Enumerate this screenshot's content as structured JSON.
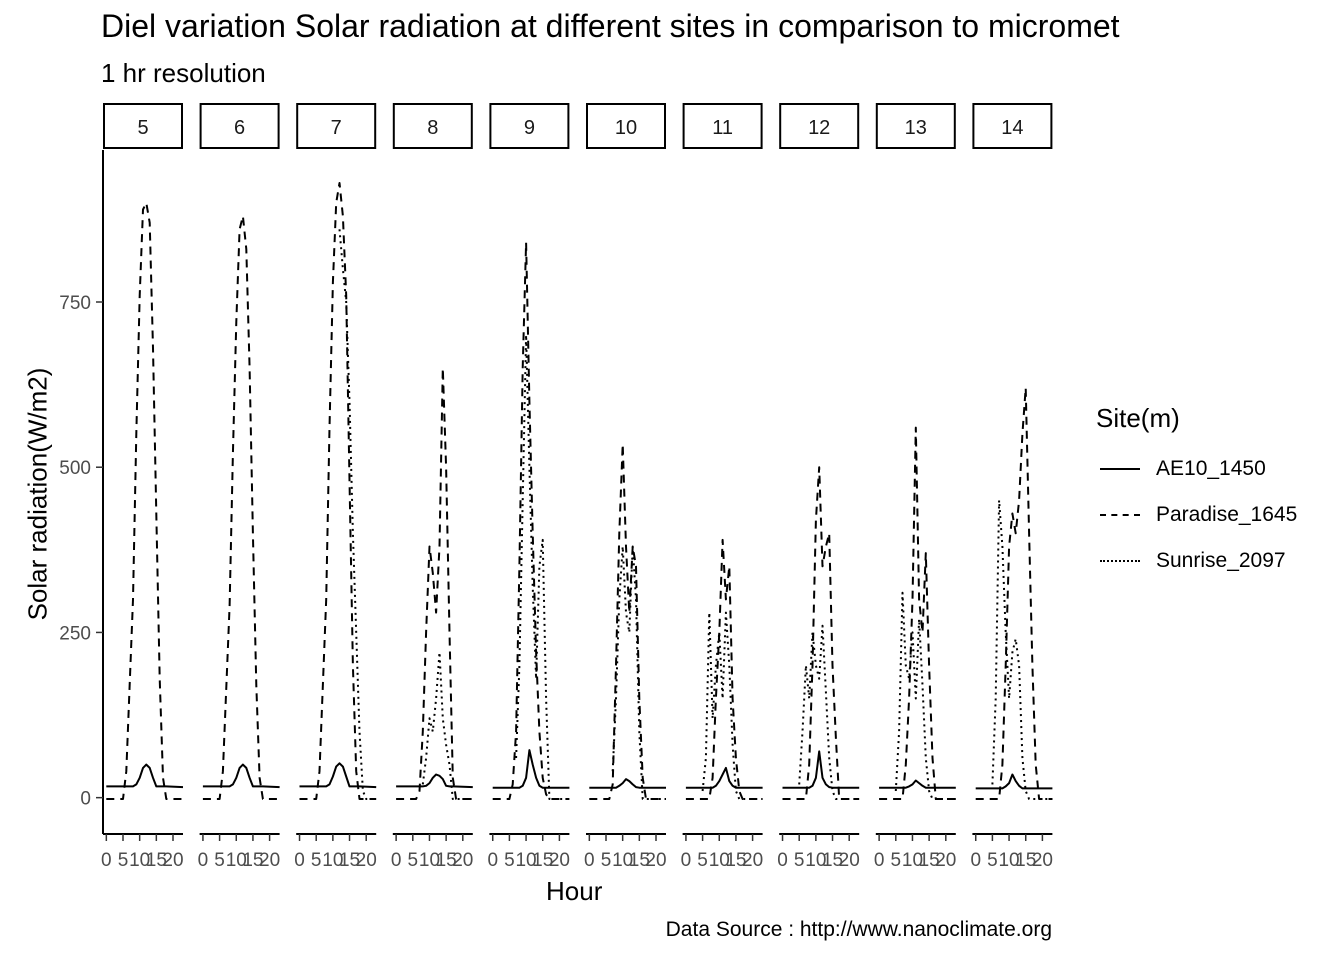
{
  "chart_data": {
    "type": "line",
    "title": "Diel variation Solar radiation at different sites in comparison to micromet",
    "subtitle": "1 hr resolution",
    "caption": "Data Source : http://www.nanoclimate.org",
    "xlabel": "Hour",
    "ylabel": "Solar radiation(W/m2)",
    "xlim": [
      -1,
      23
    ],
    "ylim": [
      -55,
      980
    ],
    "yticks": [
      0,
      250,
      500,
      750
    ],
    "xticks": [
      0,
      5,
      10,
      15,
      20
    ],
    "grid": false,
    "legend": {
      "title": "Site(m)",
      "position": "right"
    },
    "facets": [
      "5",
      "6",
      "7",
      "8",
      "9",
      "10",
      "11",
      "12",
      "13",
      "14"
    ],
    "series_styles": [
      {
        "name": "AE10_1450",
        "dash": "solid"
      },
      {
        "name": "Paradise_1645",
        "dash": "dashed"
      },
      {
        "name": "Sunrise_2097",
        "dash": "dotted"
      }
    ],
    "panels": [
      {
        "facet": "5",
        "series": [
          {
            "name": "AE10_1450",
            "x": [
              0,
              6,
              8,
              9,
              10,
              11,
              12,
              13,
              14,
              15,
              16,
              17,
              18,
              23
            ],
            "y": [
              17,
              17,
              17,
              20,
              30,
              45,
              50,
              45,
              30,
              17,
              17,
              17,
              17,
              16
            ]
          },
          {
            "name": "Paradise_1645",
            "x": [
              0,
              5,
              6,
              8,
              9,
              10,
              11,
              12,
              13,
              14,
              15,
              16,
              17,
              18,
              23
            ],
            "y": [
              -2,
              -2,
              40,
              300,
              550,
              760,
              890,
              900,
              870,
              680,
              430,
              180,
              30,
              -2,
              -2
            ]
          }
        ]
      },
      {
        "facet": "6",
        "series": [
          {
            "name": "AE10_1450",
            "x": [
              0,
              6,
              8,
              9,
              10,
              11,
              12,
              13,
              14,
              15,
              16,
              17,
              18,
              23
            ],
            "y": [
              17,
              17,
              17,
              20,
              30,
              45,
              50,
              45,
              30,
              17,
              17,
              17,
              17,
              16
            ]
          },
          {
            "name": "Paradise_1645",
            "x": [
              0,
              5,
              6,
              8,
              9,
              10,
              11,
              12,
              13,
              14,
              15,
              16,
              17,
              18,
              23
            ],
            "y": [
              -2,
              -2,
              40,
              290,
              520,
              720,
              860,
              880,
              830,
              650,
              400,
              170,
              30,
              -2,
              -2
            ]
          }
        ]
      },
      {
        "facet": "7",
        "series": [
          {
            "name": "AE10_1450",
            "x": [
              0,
              6,
              8,
              9,
              10,
              11,
              12,
              13,
              14,
              15,
              16,
              17,
              18,
              23
            ],
            "y": [
              17,
              17,
              17,
              20,
              32,
              47,
              52,
              47,
              32,
              17,
              17,
              17,
              17,
              16
            ]
          },
          {
            "name": "Paradise_1645",
            "x": [
              0,
              5,
              6,
              8,
              9,
              10,
              11,
              12,
              13,
              14,
              15,
              16,
              17,
              18,
              23
            ],
            "y": [
              -2,
              -2,
              40,
              300,
              560,
              780,
              900,
              930,
              880,
              760,
              480,
              200,
              40,
              -2,
              -2
            ]
          },
          {
            "name": "Sunrise_2097",
            "x": [
              12,
              13,
              14,
              15,
              16,
              17,
              18,
              19,
              20,
              23
            ],
            "y": [
              860,
              800,
              750,
              600,
              400,
              250,
              100,
              10,
              -2,
              -2
            ]
          }
        ]
      },
      {
        "facet": "8",
        "series": [
          {
            "name": "AE10_1450",
            "x": [
              0,
              6,
              8,
              9,
              10,
              11,
              12,
              13,
              14,
              15,
              16,
              17,
              23
            ],
            "y": [
              17,
              17,
              17,
              18,
              22,
              30,
              35,
              33,
              28,
              18,
              17,
              17,
              16
            ]
          },
          {
            "name": "Paradise_1645",
            "x": [
              0,
              6,
              7,
              8,
              9,
              10,
              11,
              12,
              13,
              14,
              15,
              16,
              17,
              18,
              23
            ],
            "y": [
              -2,
              -2,
              10,
              100,
              250,
              380,
              340,
              280,
              380,
              650,
              500,
              250,
              30,
              -2,
              -2
            ]
          },
          {
            "name": "Sunrise_2097",
            "x": [
              8,
              9,
              10,
              11,
              12,
              13,
              14,
              15,
              16,
              17,
              23
            ],
            "y": [
              20,
              60,
              120,
              100,
              150,
              220,
              120,
              80,
              50,
              -2,
              -2
            ]
          }
        ]
      },
      {
        "facet": "9",
        "series": [
          {
            "name": "AE10_1450",
            "x": [
              0,
              6,
              8,
              9,
              10,
              11,
              12,
              13,
              14,
              15,
              16,
              17,
              23
            ],
            "y": [
              15,
              15,
              15,
              18,
              30,
              72,
              50,
              30,
              18,
              15,
              15,
              15,
              15
            ]
          },
          {
            "name": "Paradise_1645",
            "x": [
              0,
              5,
              6,
              7,
              8,
              9,
              10,
              11,
              12,
              13,
              14,
              15,
              16,
              17,
              23
            ],
            "y": [
              -2,
              -2,
              20,
              100,
              350,
              650,
              840,
              600,
              400,
              220,
              100,
              30,
              5,
              -2,
              -2
            ]
          },
          {
            "name": "Sunrise_2097",
            "x": [
              7,
              8,
              9,
              10,
              11,
              12,
              13,
              14,
              15,
              16,
              17,
              23
            ],
            "y": [
              60,
              200,
              450,
              700,
              500,
              320,
              180,
              350,
              390,
              150,
              -2,
              -2
            ]
          }
        ]
      },
      {
        "facet": "10",
        "series": [
          {
            "name": "AE10_1450",
            "x": [
              0,
              6,
              8,
              9,
              10,
              11,
              12,
              13,
              14,
              15,
              16,
              23
            ],
            "y": [
              15,
              15,
              15,
              18,
              22,
              28,
              25,
              20,
              16,
              15,
              15,
              15
            ]
          },
          {
            "name": "Paradise_1645",
            "x": [
              0,
              6,
              7,
              8,
              9,
              10,
              11,
              12,
              13,
              14,
              15,
              16,
              17,
              23
            ],
            "y": [
              -2,
              -2,
              20,
              200,
              400,
              535,
              380,
              280,
              380,
              350,
              150,
              30,
              -2,
              -2
            ]
          },
          {
            "name": "Sunrise_2097",
            "x": [
              7,
              8,
              9,
              10,
              11,
              12,
              13,
              14,
              15,
              16,
              23
            ],
            "y": [
              40,
              150,
              300,
              380,
              280,
              250,
              380,
              300,
              100,
              -2,
              -2
            ]
          }
        ]
      },
      {
        "facet": "11",
        "series": [
          {
            "name": "AE10_1450",
            "x": [
              0,
              6,
              8,
              9,
              10,
              11,
              12,
              13,
              14,
              15,
              16,
              23
            ],
            "y": [
              15,
              15,
              15,
              18,
              25,
              35,
              45,
              25,
              18,
              15,
              15,
              15
            ]
          },
          {
            "name": "Paradise_1645",
            "x": [
              0,
              7,
              8,
              9,
              10,
              11,
              12,
              13,
              14,
              15,
              16,
              17,
              23
            ],
            "y": [
              -2,
              -2,
              30,
              150,
              250,
              390,
              300,
              350,
              150,
              60,
              10,
              -2,
              -2
            ]
          },
          {
            "name": "Sunrise_2097",
            "x": [
              5,
              6,
              7,
              8,
              9,
              10,
              11,
              12,
              13,
              14,
              15,
              16,
              23
            ],
            "y": [
              10,
              60,
              280,
              120,
              200,
              250,
              150,
              280,
              200,
              80,
              10,
              -2,
              -2
            ]
          }
        ]
      },
      {
        "facet": "12",
        "series": [
          {
            "name": "AE10_1450",
            "x": [
              0,
              6,
              8,
              9,
              10,
              11,
              12,
              13,
              14,
              15,
              16,
              23
            ],
            "y": [
              15,
              15,
              15,
              18,
              30,
              70,
              30,
              20,
              16,
              15,
              15,
              15
            ]
          },
          {
            "name": "Paradise_1645",
            "x": [
              0,
              7,
              8,
              9,
              10,
              11,
              12,
              13,
              14,
              15,
              16,
              17,
              23
            ],
            "y": [
              -2,
              -2,
              50,
              200,
              420,
              500,
              350,
              380,
              400,
              200,
              90,
              -2,
              -2
            ]
          },
          {
            "name": "Sunrise_2097",
            "x": [
              5,
              6,
              7,
              8,
              9,
              10,
              11,
              12,
              13,
              14,
              15,
              16,
              23
            ],
            "y": [
              20,
              100,
              200,
              150,
              250,
              200,
              180,
              260,
              160,
              60,
              10,
              -2,
              -2
            ]
          }
        ]
      },
      {
        "facet": "13",
        "series": [
          {
            "name": "AE10_1450",
            "x": [
              0,
              6,
              8,
              9,
              10,
              11,
              12,
              13,
              14,
              15,
              16,
              23
            ],
            "y": [
              15,
              15,
              15,
              17,
              20,
              26,
              22,
              18,
              15,
              15,
              15,
              15
            ]
          },
          {
            "name": "Paradise_1645",
            "x": [
              0,
              7,
              8,
              9,
              10,
              11,
              12,
              13,
              14,
              15,
              16,
              17,
              23
            ],
            "y": [
              -2,
              -2,
              50,
              150,
              300,
              560,
              300,
              250,
              370,
              200,
              60,
              -2,
              -2
            ]
          },
          {
            "name": "Sunrise_2097",
            "x": [
              5,
              6,
              7,
              8,
              9,
              10,
              11,
              12,
              13,
              14,
              15,
              16,
              23
            ],
            "y": [
              10,
              100,
              310,
              200,
              180,
              250,
              150,
              270,
              170,
              60,
              10,
              -2,
              -2
            ]
          }
        ]
      },
      {
        "facet": "14",
        "series": [
          {
            "name": "AE10_1450",
            "x": [
              0,
              6,
              8,
              9,
              10,
              11,
              12,
              13,
              14,
              15,
              16,
              23
            ],
            "y": [
              14,
              14,
              14,
              17,
              22,
              35,
              25,
              18,
              14,
              14,
              14,
              14
            ]
          },
          {
            "name": "Paradise_1645",
            "x": [
              0,
              7,
              8,
              9,
              10,
              11,
              12,
              13,
              14,
              15,
              16,
              17,
              18,
              19,
              23
            ],
            "y": [
              -2,
              -2,
              50,
              200,
              380,
              430,
              400,
              450,
              550,
              620,
              400,
              200,
              50,
              -2,
              -2
            ]
          },
          {
            "name": "Sunrise_2097",
            "x": [
              5,
              6,
              7,
              8,
              9,
              10,
              11,
              12,
              13,
              14,
              15,
              16,
              23
            ],
            "y": [
              20,
              150,
              450,
              380,
              250,
              150,
              220,
              240,
              200,
              60,
              10,
              -2,
              -2
            ]
          }
        ]
      }
    ]
  }
}
